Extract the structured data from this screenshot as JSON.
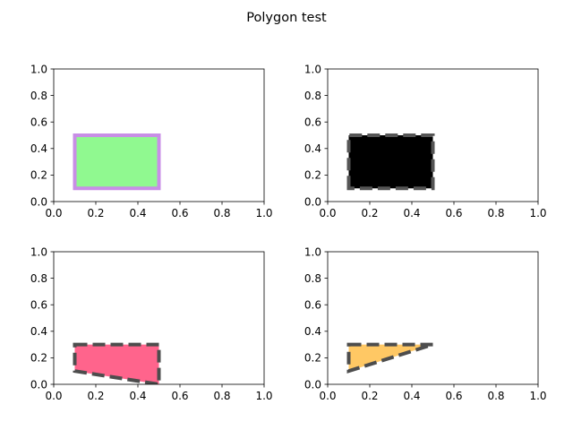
{
  "figure": {
    "title": "Polygon test"
  },
  "chart_data": [
    {
      "type": "area",
      "panel": "top-left",
      "xlim": [
        0,
        1
      ],
      "ylim": [
        0,
        1
      ],
      "xticks": [
        "0.0",
        "0.2",
        "0.4",
        "0.6",
        "0.8",
        "1.0"
      ],
      "yticks": [
        "0.0",
        "0.2",
        "0.4",
        "0.6",
        "0.8",
        "1.0"
      ],
      "grid": false,
      "polygon": {
        "vertices": [
          [
            0.1,
            0.1
          ],
          [
            0.1,
            0.5
          ],
          [
            0.5,
            0.5
          ],
          [
            0.5,
            0.1
          ]
        ],
        "face_color": "#90f990",
        "edge_color": "#c88ee6",
        "edge_style": "solid"
      }
    },
    {
      "type": "area",
      "panel": "top-right",
      "xlim": [
        0,
        1
      ],
      "ylim": [
        0,
        1
      ],
      "xticks": [
        "0.0",
        "0.2",
        "0.4",
        "0.6",
        "0.8",
        "1.0"
      ],
      "yticks": [
        "0.0",
        "0.2",
        "0.4",
        "0.6",
        "0.8",
        "1.0"
      ],
      "grid": false,
      "polygon": {
        "vertices": [
          [
            0.1,
            0.1
          ],
          [
            0.1,
            0.5
          ],
          [
            0.5,
            0.5
          ],
          [
            0.5,
            0.1
          ]
        ],
        "face_color": "#000000",
        "edge_color": "#555555",
        "edge_style": "dashed"
      }
    },
    {
      "type": "area",
      "panel": "bottom-left",
      "xlim": [
        0,
        1
      ],
      "ylim": [
        0,
        1
      ],
      "xticks": [
        "0.0",
        "0.2",
        "0.4",
        "0.6",
        "0.8",
        "1.0"
      ],
      "yticks": [
        "0.0",
        "0.2",
        "0.4",
        "0.6",
        "0.8",
        "1.0"
      ],
      "grid": false,
      "polygon": {
        "vertices": [
          [
            0.1,
            0.3
          ],
          [
            0.5,
            0.3
          ],
          [
            0.5,
            0.0
          ],
          [
            0.1,
            0.1
          ]
        ],
        "face_color": "#ff648c",
        "edge_color": "#4d4d4d",
        "edge_style": "dashed"
      }
    },
    {
      "type": "area",
      "panel": "bottom-right",
      "xlim": [
        0,
        1
      ],
      "ylim": [
        0,
        1
      ],
      "xticks": [
        "0.0",
        "0.2",
        "0.4",
        "0.6",
        "0.8",
        "1.0"
      ],
      "yticks": [
        "0.0",
        "0.2",
        "0.4",
        "0.6",
        "0.8",
        "1.0"
      ],
      "grid": false,
      "polygon": {
        "vertices": [
          [
            0.1,
            0.3
          ],
          [
            0.5,
            0.3
          ],
          [
            0.1,
            0.1
          ]
        ],
        "face_color": "#ffc864",
        "edge_color": "#4d4d4d",
        "edge_style": "dashed"
      }
    }
  ]
}
